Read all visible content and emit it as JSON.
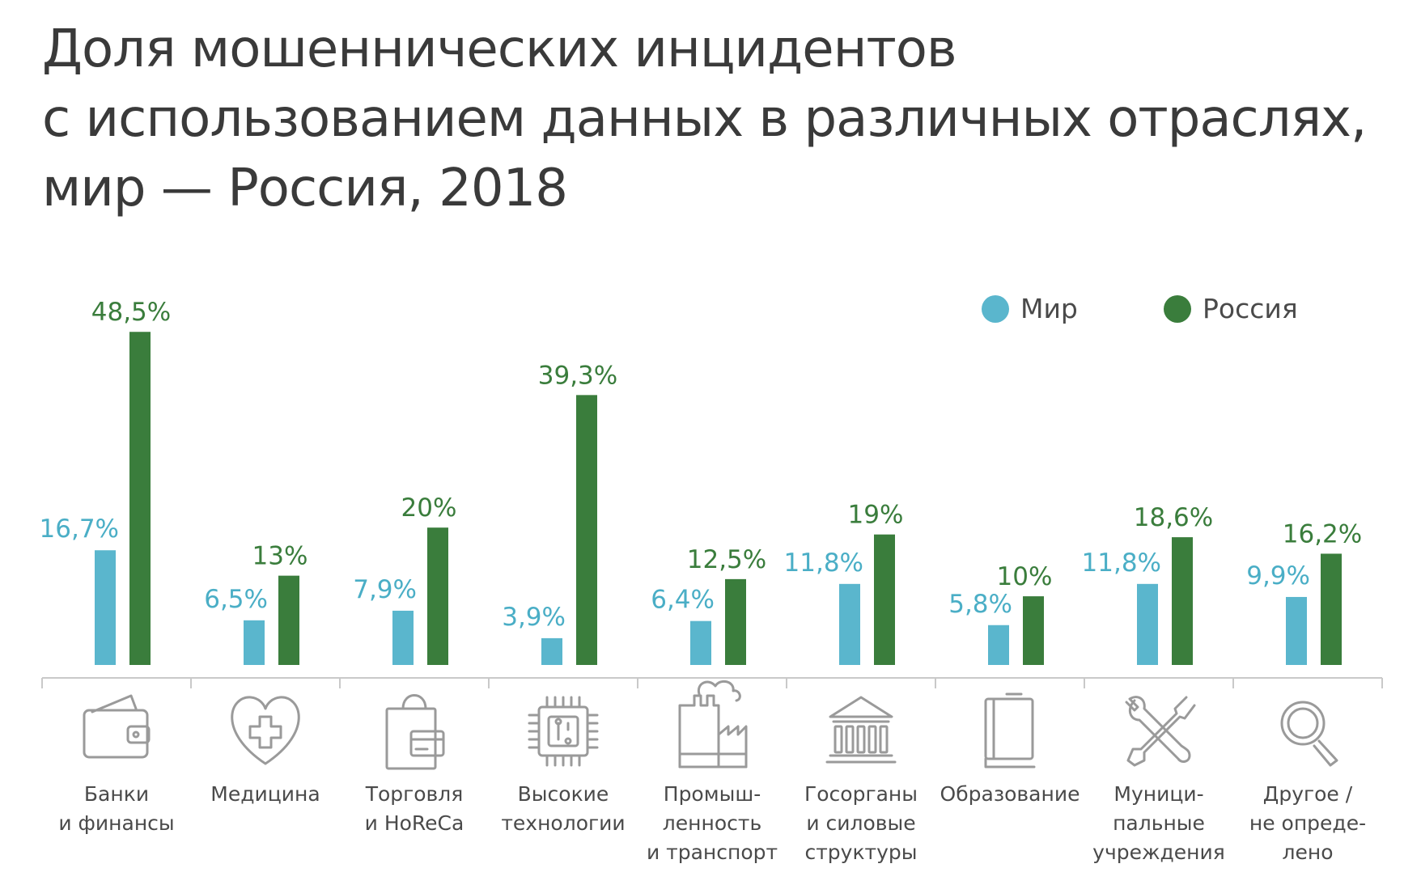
{
  "chart_data": {
    "type": "bar",
    "title": [
      "Доля мошеннических инцидентов",
      "с использованием данных в различных отраслях,",
      "мир — Россия, 2018"
    ],
    "categories": [
      [
        "Банки",
        "и финансы"
      ],
      [
        "Медицина"
      ],
      [
        "Торговля",
        "и HoReCa"
      ],
      [
        "Высокие",
        "технологии"
      ],
      [
        "Промыш-",
        "ленность",
        "и транспорт"
      ],
      [
        "Госорганы",
        "и силовые",
        "структуры"
      ],
      [
        "Образование"
      ],
      [
        "Муници-",
        "пальные",
        "учреждения"
      ],
      [
        "Другое /",
        "не опреде-",
        "лено"
      ]
    ],
    "category_icons": [
      "wallet-icon",
      "heart-medical-icon",
      "shopping-bag-icon",
      "microchip-icon",
      "factory-icon",
      "government-building-icon",
      "book-icon",
      "tools-icon",
      "magnifier-icon"
    ],
    "series": [
      {
        "name": "Мир",
        "color": "#5ab6cd",
        "values": [
          16.7,
          6.5,
          7.9,
          3.9,
          6.4,
          11.8,
          5.8,
          11.8,
          9.9
        ],
        "labels": [
          "16,7%",
          "6,5%",
          "7,9%",
          "3,9%",
          "6,4%",
          "11,8%",
          "5,8%",
          "11,8%",
          "9,9%"
        ]
      },
      {
        "name": "Россия",
        "color": "#3a7d3c",
        "values": [
          48.5,
          13,
          20,
          39.3,
          12.5,
          19,
          10,
          18.6,
          16.2
        ],
        "labels": [
          "48,5%",
          "13%",
          "20%",
          "39,3%",
          "12,5%",
          "19%",
          "10%",
          "18,6%",
          "16,2%"
        ]
      }
    ],
    "label_colors": {
      "Мир": "#4aaec6",
      "Россия": "#3a7d3c"
    },
    "ylim": [
      0,
      50
    ],
    "legend": "top-right",
    "grid": false
  }
}
